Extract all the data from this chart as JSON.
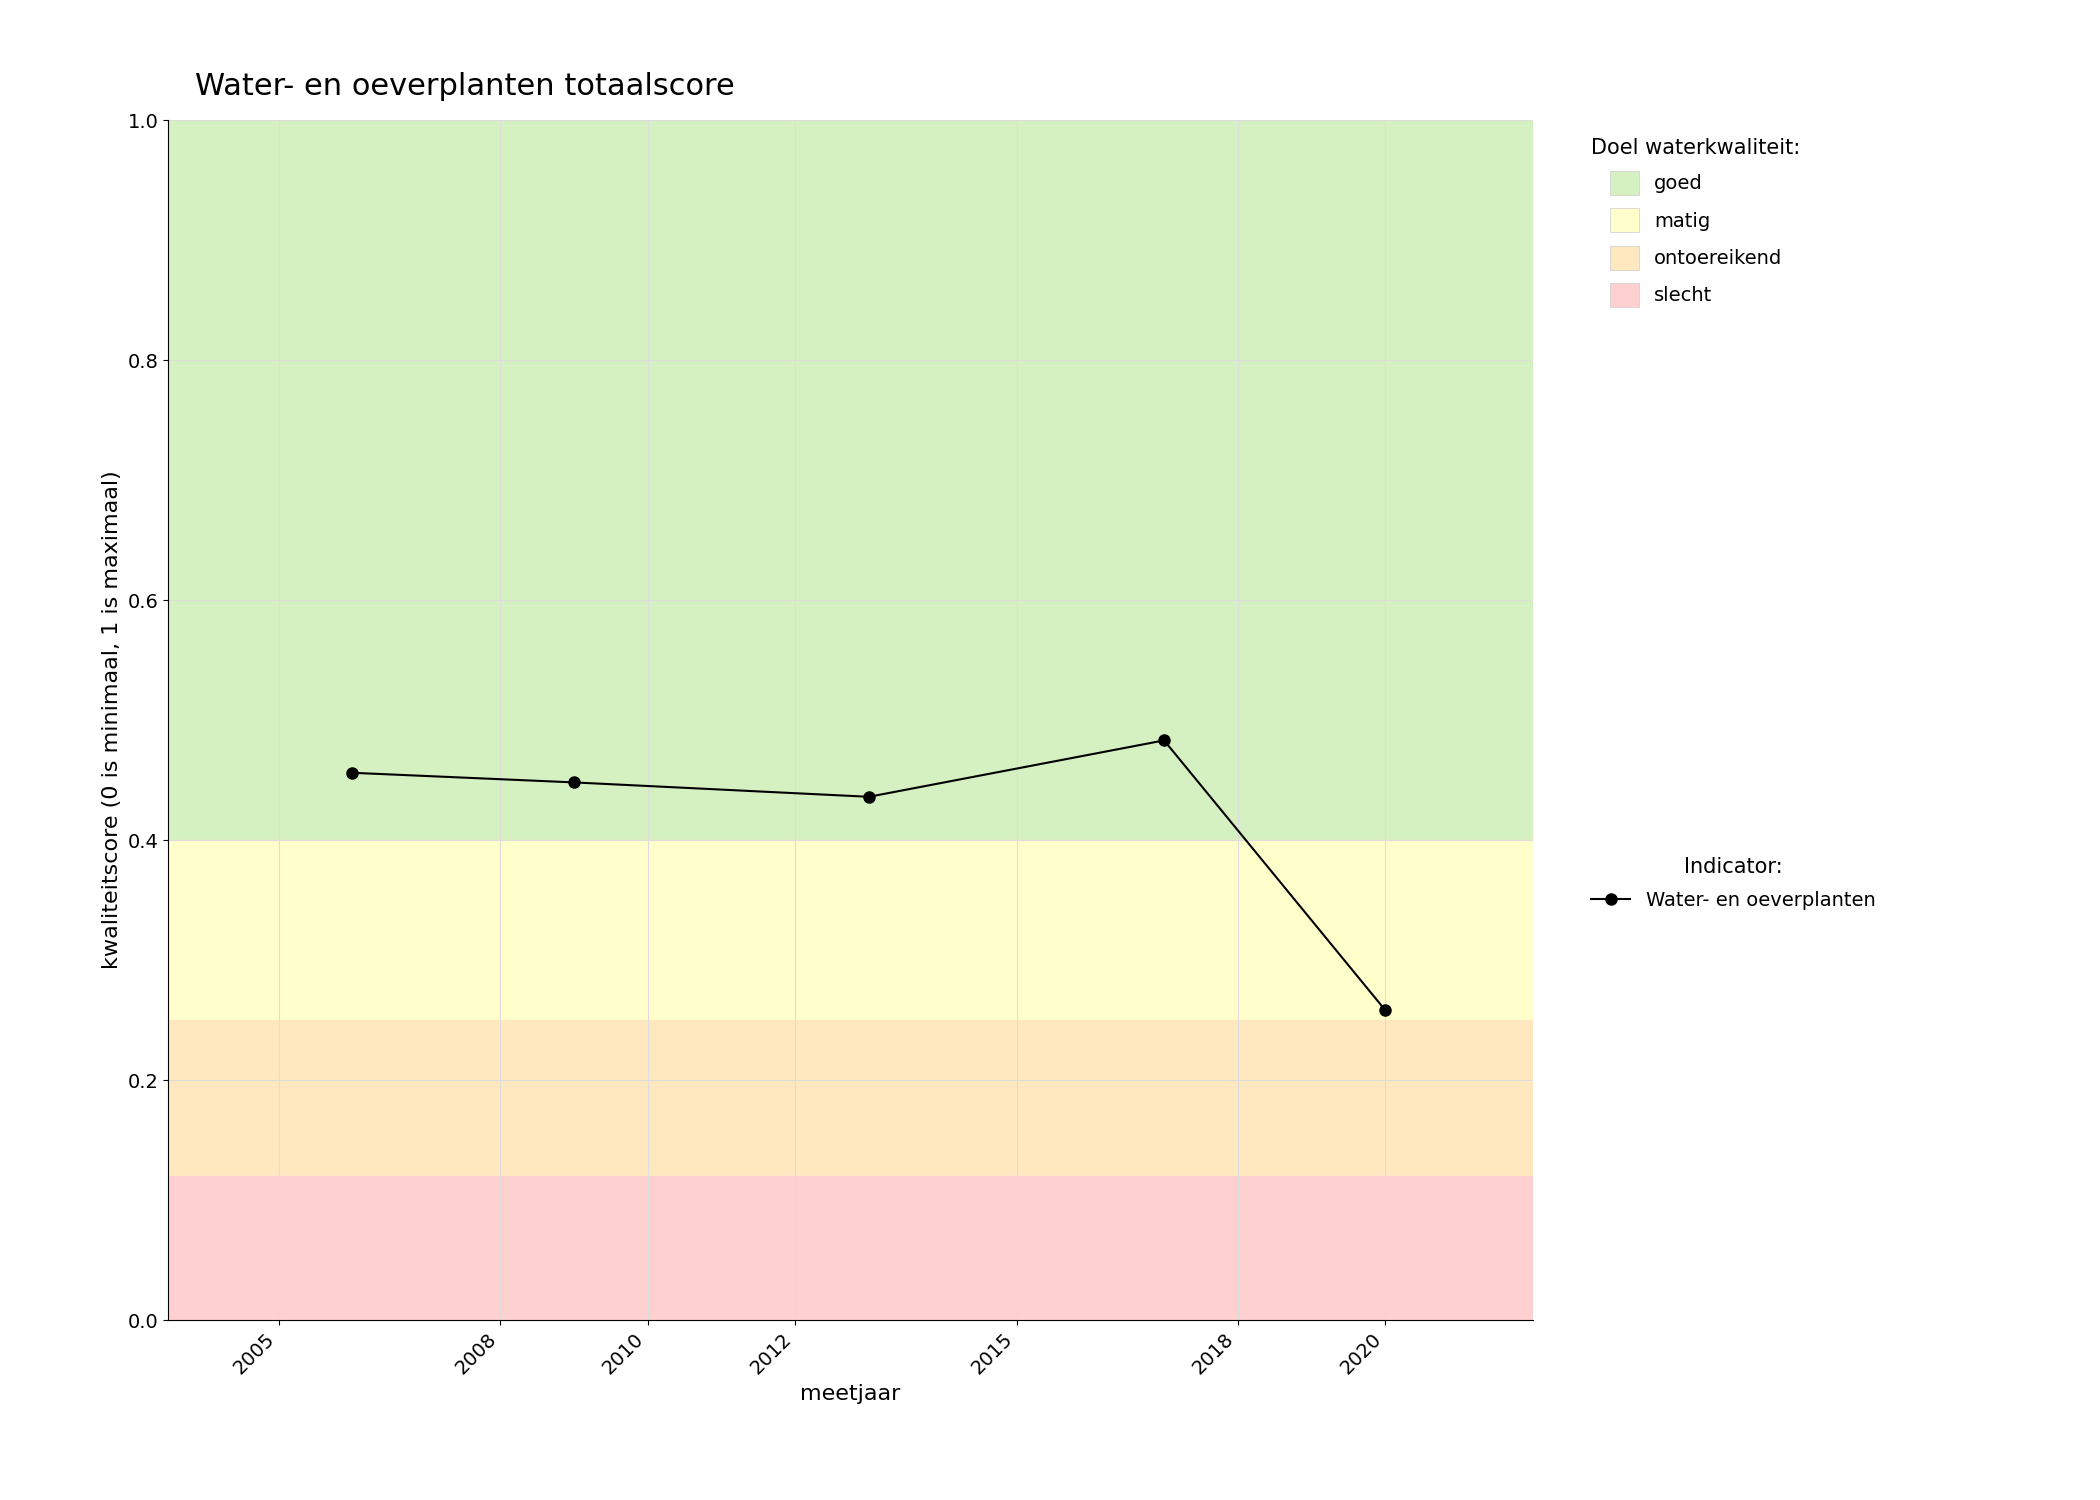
{
  "title": "Water- en oeverplanten totaalscore",
  "xlabel": "meetjaar",
  "ylabel": "kwaliteitscore (0 is minimaal, 1 is maximaal)",
  "years": [
    2006,
    2009,
    2013,
    2017,
    2020
  ],
  "values": [
    0.456,
    0.448,
    0.436,
    0.483,
    0.258
  ],
  "xlim": [
    2003.5,
    2022.0
  ],
  "ylim": [
    0.0,
    1.0
  ],
  "xticks": [
    2005,
    2008,
    2010,
    2012,
    2015,
    2018,
    2020
  ],
  "yticks": [
    0.0,
    0.2,
    0.4,
    0.6,
    0.8,
    1.0
  ],
  "bg_color": "#ffffff",
  "plot_bg_color": "#ffffff",
  "color_goed": "#d5f0c1",
  "color_matig": "#ffffcc",
  "color_ontoereikend": "#ffe8c0",
  "color_slecht": "#ffd0d0",
  "zone_goed_min": 0.4,
  "zone_goed_max": 1.0,
  "zone_matig_min": 0.25,
  "zone_matig_max": 0.4,
  "zone_ontoereikend_min": 0.12,
  "zone_ontoereikend_max": 0.25,
  "zone_slecht_min": 0.0,
  "zone_slecht_max": 0.12,
  "line_color": "#000000",
  "marker_color": "#000000",
  "marker_size": 8,
  "line_width": 1.5,
  "legend_title_doel": "Doel waterkwaliteit:",
  "legend_title_indicator": "Indicator:",
  "legend_labels": [
    "goed",
    "matig",
    "ontoereikend",
    "slecht"
  ],
  "legend_indicator_label": "Water- en oeverplanten",
  "title_fontsize": 22,
  "label_fontsize": 16,
  "tick_fontsize": 14,
  "legend_fontsize": 14,
  "legend_title_fontsize": 15,
  "grid_color": "#dddddd",
  "grid_linewidth": 0.8
}
